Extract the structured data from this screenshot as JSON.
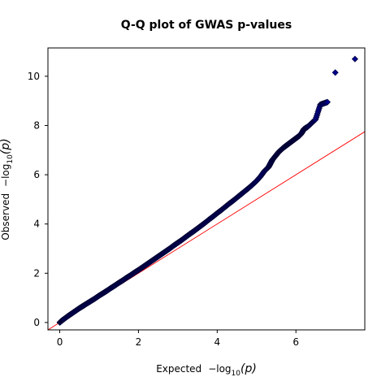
{
  "chart_data": {
    "type": "scatter",
    "title": "Q-Q plot of GWAS p-values",
    "xlabel": {
      "prefix": "Expected",
      "formula": "−log",
      "subscript": "10",
      "arg": "(p)"
    },
    "ylabel": {
      "prefix": "Observed",
      "formula": "−log",
      "subscript": "10",
      "arg": "(p)"
    },
    "xlim": [
      -0.3,
      7.75
    ],
    "ylim": [
      -0.3,
      11.15
    ],
    "x_ticks": [
      0,
      2,
      4,
      6
    ],
    "x_tick_labels": [
      "0",
      "2",
      "4",
      "6"
    ],
    "y_ticks": [
      0,
      2,
      4,
      6,
      8,
      10
    ],
    "y_tick_labels": [
      "0",
      "2",
      "4",
      "6",
      "8",
      "10"
    ],
    "grid": false,
    "reference_line": {
      "from": [
        -0.3,
        -0.3
      ],
      "to": [
        7.75,
        7.75
      ],
      "color": "#ff0000"
    },
    "marker_color": "#00008b",
    "marker_edge": "#000033",
    "series": [
      {
        "x": [
          0.0,
          0.05,
          0.1,
          0.2,
          0.3,
          0.4,
          0.5,
          0.6,
          0.7,
          0.8,
          0.9,
          1.0,
          1.1,
          1.2,
          1.3,
          1.4,
          1.5,
          1.6,
          1.7,
          1.8,
          1.9,
          2.0,
          2.1,
          2.2,
          2.3,
          2.4,
          2.5,
          2.6,
          2.7,
          2.8,
          2.9,
          3.0,
          3.1,
          3.2,
          3.3,
          3.4,
          3.5,
          3.6,
          3.7,
          3.8,
          3.9,
          4.0,
          4.1,
          4.2,
          4.3,
          4.4,
          4.5,
          4.6,
          4.7,
          4.8,
          4.9,
          5.0,
          5.1,
          5.2,
          5.3,
          5.35,
          5.4,
          5.45,
          5.5,
          5.55,
          5.6,
          5.65,
          5.7,
          5.75,
          5.8,
          5.85,
          5.9,
          5.95,
          6.0,
          6.05,
          6.1,
          6.15,
          6.2,
          6.25,
          6.3,
          6.4,
          6.5,
          6.62,
          6.8,
          7.0,
          7.5
        ],
        "y": [
          0.0,
          0.07,
          0.13,
          0.25,
          0.36,
          0.47,
          0.58,
          0.68,
          0.78,
          0.88,
          0.98,
          1.09,
          1.19,
          1.29,
          1.4,
          1.5,
          1.61,
          1.71,
          1.82,
          1.92,
          2.03,
          2.13,
          2.24,
          2.35,
          2.46,
          2.57,
          2.68,
          2.79,
          2.9,
          3.01,
          3.13,
          3.24,
          3.35,
          3.47,
          3.59,
          3.7,
          3.82,
          3.94,
          4.06,
          4.19,
          4.31,
          4.44,
          4.56,
          4.69,
          4.82,
          4.94,
          5.07,
          5.2,
          5.33,
          5.46,
          5.6,
          5.75,
          5.93,
          6.15,
          6.3,
          6.45,
          6.6,
          6.7,
          6.8,
          6.9,
          6.98,
          7.05,
          7.12,
          7.18,
          7.24,
          7.3,
          7.36,
          7.42,
          7.48,
          7.54,
          7.6,
          7.7,
          7.85,
          7.9,
          7.95,
          8.1,
          8.25,
          8.85,
          8.95,
          10.15,
          10.7
        ]
      }
    ]
  }
}
